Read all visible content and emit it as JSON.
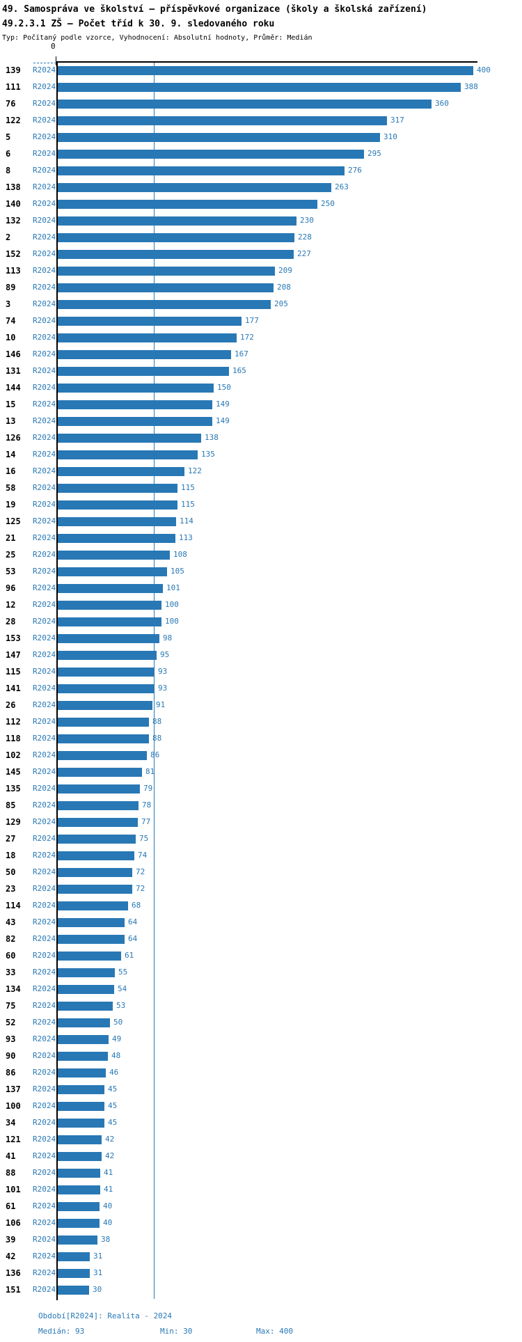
{
  "header": {
    "title_line1": "49. Samospráva ve školství – příspěvkové organizace (školy a školská zařízení)",
    "title_line2": "49.2.3.1 ZŠ – Počet tříd k 30. 9. sledovaného roku",
    "subtitle": "Typ: Počítaný podle vzorce, Vyhodnocení: Absolutní hodnoty, Průměr: Medián"
  },
  "chart_data": {
    "type": "bar",
    "orientation": "horizontal",
    "title": "49.2.3.1 ZŠ – Počet tříd k 30. 9. sledovaného roku",
    "series_label": "R2024",
    "xlabel": "",
    "ylabel": "",
    "axis": {
      "origin_label": "0",
      "min": 0,
      "max": 400,
      "median_guide": 93,
      "grid": false
    },
    "colors": {
      "bar": "#2878b5",
      "value_text": "#2878b5",
      "median_line": "#2878b5",
      "axis": "#000000"
    },
    "rows": [
      {
        "id": "139",
        "value": 400
      },
      {
        "id": "111",
        "value": 388
      },
      {
        "id": "76",
        "value": 360
      },
      {
        "id": "122",
        "value": 317
      },
      {
        "id": "5",
        "value": 310
      },
      {
        "id": "6",
        "value": 295
      },
      {
        "id": "8",
        "value": 276
      },
      {
        "id": "138",
        "value": 263
      },
      {
        "id": "140",
        "value": 250
      },
      {
        "id": "132",
        "value": 230
      },
      {
        "id": "2",
        "value": 228
      },
      {
        "id": "152",
        "value": 227
      },
      {
        "id": "113",
        "value": 209
      },
      {
        "id": "89",
        "value": 208
      },
      {
        "id": "3",
        "value": 205
      },
      {
        "id": "74",
        "value": 177
      },
      {
        "id": "10",
        "value": 172
      },
      {
        "id": "146",
        "value": 167
      },
      {
        "id": "131",
        "value": 165
      },
      {
        "id": "144",
        "value": 150
      },
      {
        "id": "15",
        "value": 149
      },
      {
        "id": "13",
        "value": 149
      },
      {
        "id": "126",
        "value": 138
      },
      {
        "id": "14",
        "value": 135
      },
      {
        "id": "16",
        "value": 122
      },
      {
        "id": "58",
        "value": 115
      },
      {
        "id": "19",
        "value": 115
      },
      {
        "id": "125",
        "value": 114
      },
      {
        "id": "21",
        "value": 113
      },
      {
        "id": "25",
        "value": 108
      },
      {
        "id": "53",
        "value": 105
      },
      {
        "id": "96",
        "value": 101
      },
      {
        "id": "12",
        "value": 100
      },
      {
        "id": "28",
        "value": 100
      },
      {
        "id": "153",
        "value": 98
      },
      {
        "id": "147",
        "value": 95
      },
      {
        "id": "115",
        "value": 93
      },
      {
        "id": "141",
        "value": 93
      },
      {
        "id": "26",
        "value": 91
      },
      {
        "id": "112",
        "value": 88
      },
      {
        "id": "118",
        "value": 88
      },
      {
        "id": "102",
        "value": 86
      },
      {
        "id": "145",
        "value": 81
      },
      {
        "id": "135",
        "value": 79
      },
      {
        "id": "85",
        "value": 78
      },
      {
        "id": "129",
        "value": 77
      },
      {
        "id": "27",
        "value": 75
      },
      {
        "id": "18",
        "value": 74
      },
      {
        "id": "50",
        "value": 72
      },
      {
        "id": "23",
        "value": 72
      },
      {
        "id": "114",
        "value": 68
      },
      {
        "id": "43",
        "value": 64
      },
      {
        "id": "82",
        "value": 64
      },
      {
        "id": "60",
        "value": 61
      },
      {
        "id": "33",
        "value": 55
      },
      {
        "id": "134",
        "value": 54
      },
      {
        "id": "75",
        "value": 53
      },
      {
        "id": "52",
        "value": 50
      },
      {
        "id": "93",
        "value": 49
      },
      {
        "id": "90",
        "value": 48
      },
      {
        "id": "86",
        "value": 46
      },
      {
        "id": "137",
        "value": 45
      },
      {
        "id": "100",
        "value": 45
      },
      {
        "id": "34",
        "value": 45
      },
      {
        "id": "121",
        "value": 42
      },
      {
        "id": "41",
        "value": 42
      },
      {
        "id": "88",
        "value": 41
      },
      {
        "id": "101",
        "value": 41
      },
      {
        "id": "61",
        "value": 40
      },
      {
        "id": "106",
        "value": 40
      },
      {
        "id": "39",
        "value": 38
      },
      {
        "id": "42",
        "value": 31
      },
      {
        "id": "136",
        "value": 31
      },
      {
        "id": "151",
        "value": 30
      }
    ]
  },
  "footer": {
    "period": "Období[R2024]: Realita - 2024",
    "median": "Medián: 93",
    "min": "Min: 30",
    "max": "Max: 400"
  }
}
